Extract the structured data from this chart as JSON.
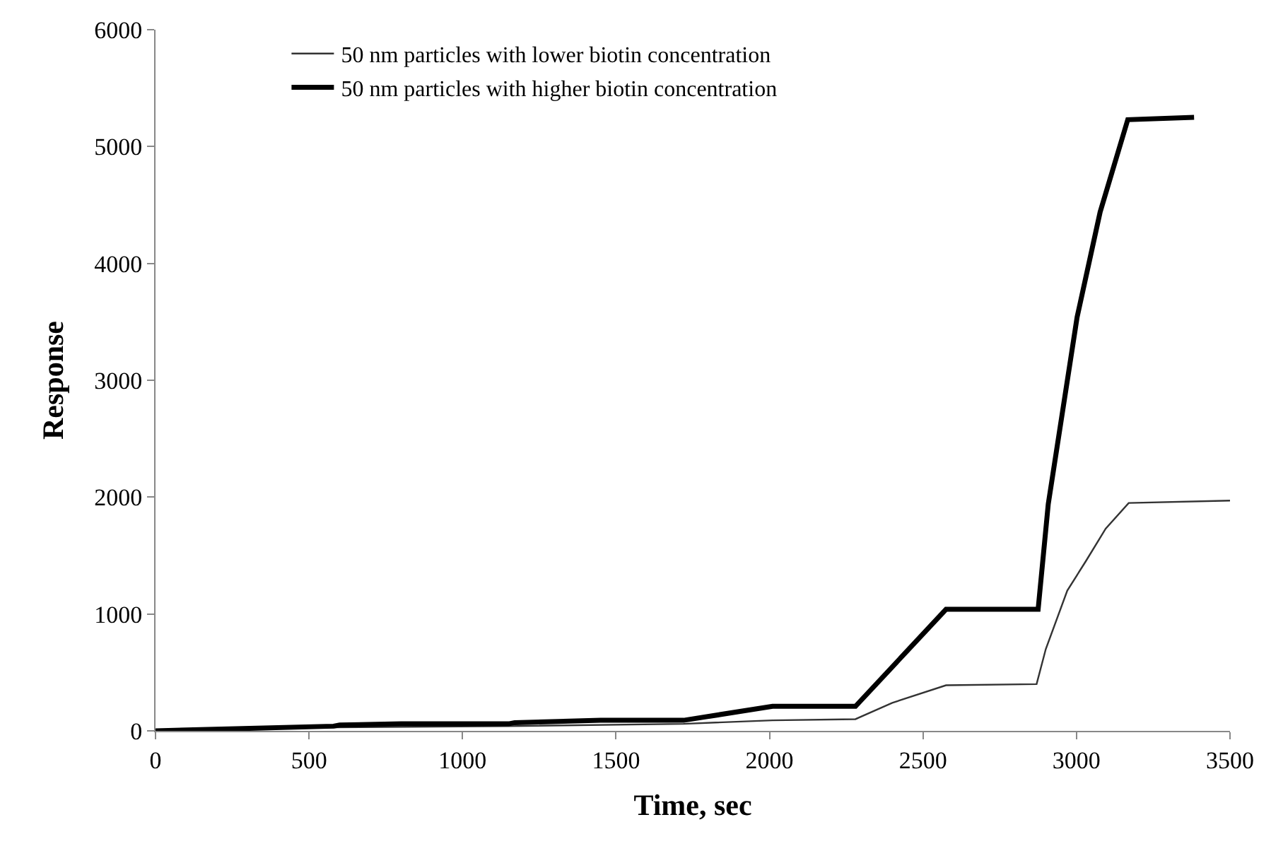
{
  "chart_data": {
    "type": "line",
    "xlabel": "Time, sec",
    "ylabel": "Response",
    "xlim": [
      0,
      3500
    ],
    "xticks": [
      0,
      500,
      1000,
      1500,
      2000,
      2500,
      3000,
      3500
    ],
    "ylim": [
      0,
      6000
    ],
    "yticks": [
      0,
      1000,
      2000,
      3000,
      4000,
      5000,
      6000
    ],
    "legend": "top left",
    "marker": "none",
    "line_style": "solid",
    "series": [
      {
        "name": "50 nm particles with lower biotin concentration",
        "color": "#333333",
        "x": [
          0,
          580,
          1150,
          1720,
          2010,
          2280,
          2400,
          2575,
          2870,
          2900,
          2970,
          3030,
          3095,
          3170,
          3500
        ],
        "values": [
          0,
          30,
          40,
          60,
          90,
          100,
          240,
          390,
          400,
          700,
          1200,
          1450,
          1730,
          1950,
          1970
        ]
      },
      {
        "name": "50 nm particles with higher biotin concentration",
        "color": "#000000",
        "x": [
          0,
          580,
          600,
          800,
          1150,
          1170,
          1450,
          1720,
          2010,
          2280,
          2575,
          2875,
          2908,
          3002,
          3077,
          3167,
          3383
        ],
        "values": [
          0,
          40,
          50,
          60,
          60,
          70,
          90,
          90,
          210,
          210,
          1040,
          1040,
          1940,
          3540,
          4440,
          5230,
          5250
        ]
      }
    ]
  }
}
